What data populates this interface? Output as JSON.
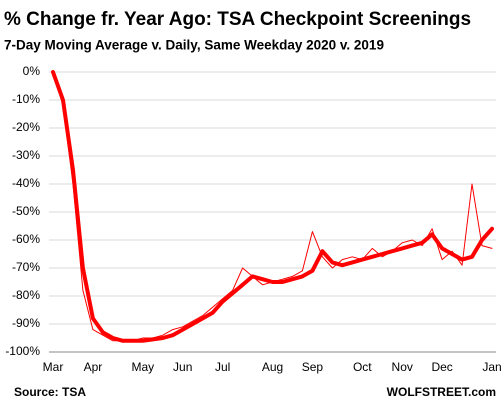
{
  "chart_data": {
    "type": "line",
    "title": "% Change fr. Year Ago: TSA Checkpoint Screenings",
    "subtitle": "7-Day Moving Average v. Daily, Same Weekday 2020 v. 2019",
    "source": "Source: TSA",
    "credit": "WOLFSTREET.com",
    "categories": [
      "Mar",
      null,
      null,
      null,
      "Apr",
      null,
      null,
      null,
      null,
      "May",
      null,
      null,
      null,
      "Jun",
      null,
      null,
      null,
      "Jul",
      null,
      null,
      null,
      null,
      "Aug",
      null,
      null,
      null,
      "Sep",
      null,
      null,
      null,
      null,
      "Oct",
      null,
      null,
      null,
      "Nov",
      null,
      null,
      null,
      "Dec",
      null,
      null,
      null,
      null,
      "Jan"
    ],
    "series": [
      {
        "name": "7-Day Moving Average",
        "color": "#ff0000",
        "width": 4,
        "values": [
          0,
          -10,
          -35,
          -70,
          -88,
          -93,
          -95,
          -96,
          -96,
          -96,
          -95.5,
          -95,
          -94,
          -92,
          -90,
          -88,
          -86,
          -82,
          -79,
          -76,
          -73,
          -74,
          -75,
          -75,
          -74,
          -73,
          -71,
          -64,
          -68,
          -69,
          -68,
          -67,
          -66,
          -65,
          -64,
          -63,
          -62,
          -61,
          -58,
          -63,
          -65,
          -67,
          -66,
          -60,
          -56
        ]
      },
      {
        "name": "Daily",
        "color": "#ff0000",
        "width": 1,
        "values": [
          0,
          -12,
          -40,
          -78,
          -92,
          -94,
          -96,
          -96,
          -96,
          -95,
          -95,
          -94,
          -92,
          -91,
          -89,
          -87,
          -84,
          -81,
          -78,
          -70,
          -73,
          -76,
          -75,
          -74,
          -73,
          -71,
          -57,
          -66,
          -70,
          -67,
          -66,
          -67,
          -63,
          -66,
          -64,
          -61,
          -60,
          -62,
          -56,
          -67,
          -64,
          -69,
          -40,
          -62,
          -63
        ]
      }
    ],
    "ylim": [
      -100,
      0
    ],
    "yticks": [
      {
        "value": 0,
        "label": "0%"
      },
      {
        "value": -10,
        "label": "-10%"
      },
      {
        "value": -20,
        "label": "-20%"
      },
      {
        "value": -30,
        "label": "-30%"
      },
      {
        "value": -40,
        "label": "-40%"
      },
      {
        "value": -50,
        "label": "-50%"
      },
      {
        "value": -60,
        "label": "-60%"
      },
      {
        "value": -70,
        "label": "-70%"
      },
      {
        "value": -80,
        "label": "-80%"
      },
      {
        "value": -90,
        "label": "-90%"
      },
      {
        "value": -100,
        "label": "-100%"
      }
    ],
    "grid": true
  }
}
